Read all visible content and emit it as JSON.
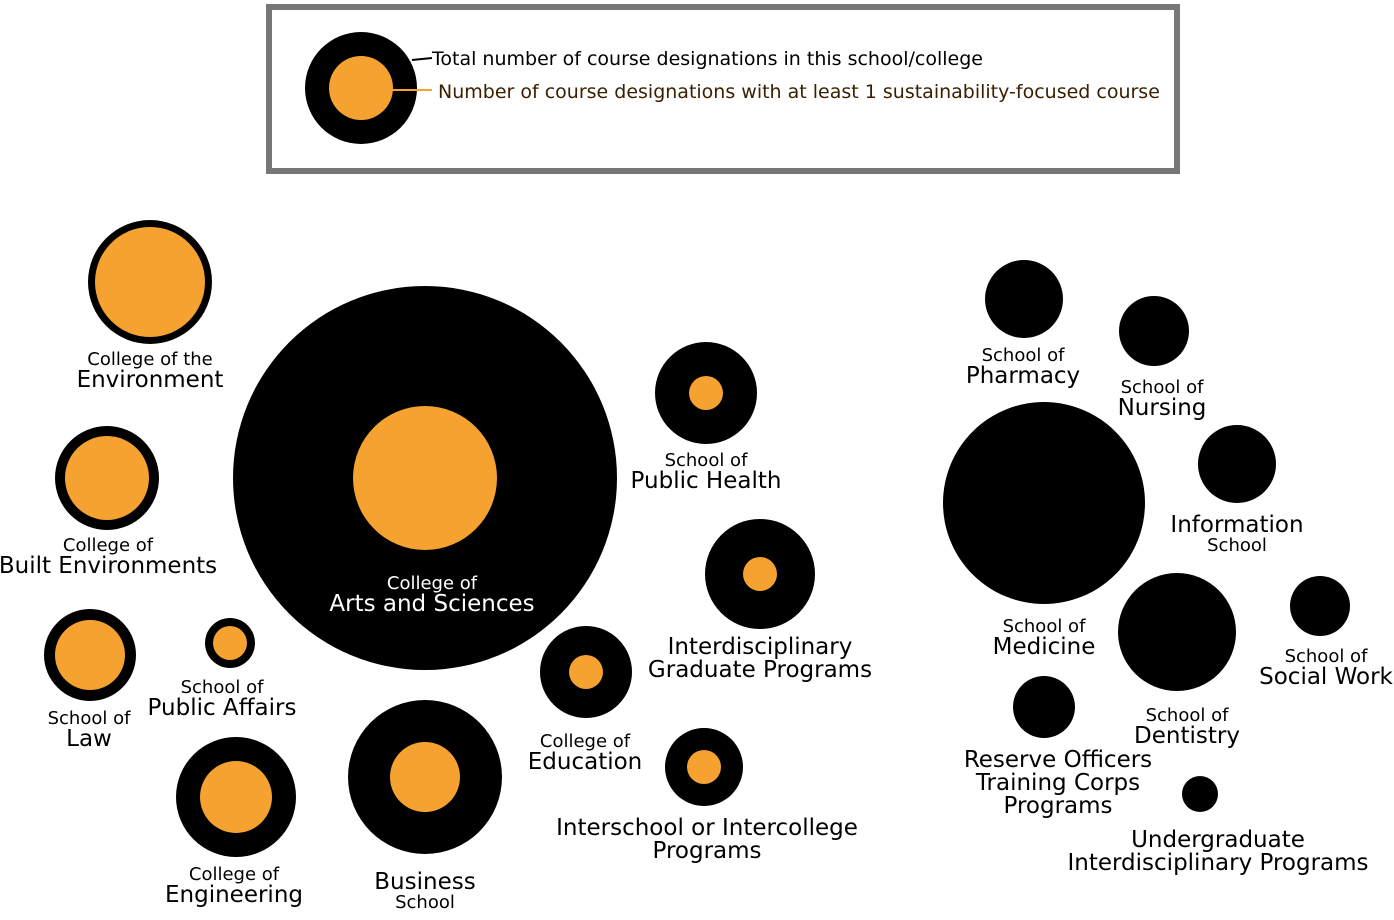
{
  "colors": {
    "total": "#000000",
    "sustainability": "#f6a230",
    "legend_border": "#777777",
    "legend_orange_text": "#3a2000"
  },
  "legend": {
    "total_label": "Total number of course designations in this school/college",
    "sustainability_label": "Number of course designations with at least 1 sustainability-focused course"
  },
  "schools": [
    {
      "id": "environment",
      "line1": "College of the",
      "line2": "Environment",
      "has_sustainability": true
    },
    {
      "id": "built-environments",
      "line1": "College of",
      "line2": "Built Environments",
      "has_sustainability": true
    },
    {
      "id": "law",
      "line1": "School of",
      "line2": "Law",
      "has_sustainability": true
    },
    {
      "id": "public-affairs",
      "line1": "School of",
      "line2": "Public Affairs",
      "has_sustainability": true
    },
    {
      "id": "engineering",
      "line1": "College of",
      "line2": "Engineering",
      "has_sustainability": true
    },
    {
      "id": "arts-sciences",
      "line1": "College of",
      "line2": "Arts and Sciences",
      "has_sustainability": true
    },
    {
      "id": "business",
      "line1": "Business",
      "line2": "School",
      "has_sustainability": true
    },
    {
      "id": "public-health",
      "line1": "School of",
      "line2": "Public Health",
      "has_sustainability": true
    },
    {
      "id": "interdisciplinary-graduate",
      "line1": "Interdisciplinary",
      "line2": "Graduate Programs",
      "has_sustainability": true
    },
    {
      "id": "education",
      "line1": "College of",
      "line2": "Education",
      "has_sustainability": true
    },
    {
      "id": "interschool",
      "line1": "Interschool or Intercollege",
      "line2": "Programs",
      "has_sustainability": true
    },
    {
      "id": "pharmacy",
      "line1": "School of",
      "line2": "Pharmacy",
      "has_sustainability": false
    },
    {
      "id": "nursing",
      "line1": "School of",
      "line2": "Nursing",
      "has_sustainability": false
    },
    {
      "id": "information",
      "line1": "Information",
      "line2": "School",
      "has_sustainability": false
    },
    {
      "id": "medicine",
      "line1": "School of",
      "line2": "Medicine",
      "has_sustainability": false
    },
    {
      "id": "social-work",
      "line1": "School of",
      "line2": "Social Work",
      "has_sustainability": false
    },
    {
      "id": "dentistry",
      "line1": "School of",
      "line2": "Dentistry",
      "has_sustainability": false
    },
    {
      "id": "rotc",
      "line1": "Reserve Officers",
      "line2": "Training Corps",
      "line3": "Programs",
      "has_sustainability": false
    },
    {
      "id": "undergraduate-interdisciplinary",
      "line1": "Undergraduate",
      "line2": "Interdisciplinary Programs",
      "has_sustainability": false
    }
  ]
}
